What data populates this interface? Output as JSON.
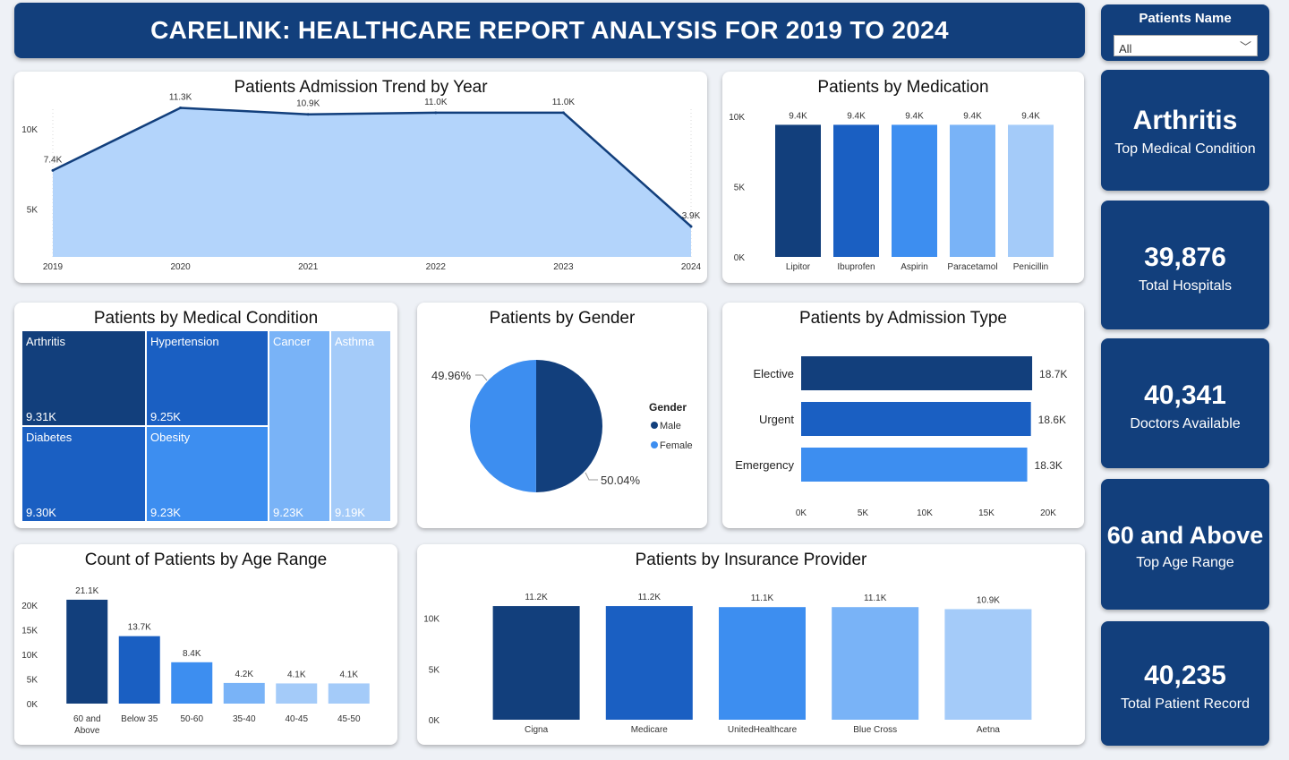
{
  "header": {
    "title": "CARELINK: HEALTHCARE REPORT ANALYSIS FOR 2019 TO 2024"
  },
  "slicer": {
    "title": "Patients Name",
    "value": "All"
  },
  "kpis": [
    {
      "value": "Arthritis",
      "label": "Top Medical Condition"
    },
    {
      "value": "39,876",
      "label": "Total Hospitals"
    },
    {
      "value": "40,341",
      "label": "Doctors Available"
    },
    {
      "value": "60 and Above",
      "label": "Top Age Range"
    },
    {
      "value": "40,235",
      "label": "Total Patient Record"
    }
  ],
  "colors": {
    "navy": "#123f7c",
    "c1": "#123f7c",
    "c2": "#1a5fc2",
    "c3": "#3d8ef0",
    "c4": "#79b3f7",
    "c5": "#a4cbf9",
    "area": "#b3d4fb"
  },
  "chart_data": [
    {
      "id": "admission_trend",
      "type": "area",
      "title": "Patients Admission Trend by Year",
      "x": [
        "2019",
        "2020",
        "2021",
        "2022",
        "2023",
        "2024"
      ],
      "values": [
        7.4,
        11.3,
        10.9,
        11.0,
        11.0,
        3.9
      ],
      "data_labels": [
        "7.4K",
        "11.3K",
        "10.9K",
        "11.0K",
        "11.0K",
        "3.9K"
      ],
      "yticks": [
        "5K",
        "10K"
      ],
      "ylim": [
        2,
        12
      ]
    },
    {
      "id": "medication",
      "type": "bar",
      "title": "Patients by Medication",
      "categories": [
        "Lipitor",
        "Ibuprofen",
        "Aspirin",
        "Paracetamol",
        "Penicillin"
      ],
      "values": [
        9.4,
        9.4,
        9.4,
        9.4,
        9.4
      ],
      "data_labels": [
        "9.4K",
        "9.4K",
        "9.4K",
        "9.4K",
        "9.4K"
      ],
      "yticks": [
        "0K",
        "5K",
        "10K"
      ],
      "ylim": [
        0,
        10
      ]
    },
    {
      "id": "medical_condition",
      "type": "heatmap",
      "title": "Patients by Medical Condition",
      "categories": [
        "Arthritis",
        "Hypertension",
        "Diabetes",
        "Obesity",
        "Cancer",
        "Asthma"
      ],
      "values": [
        9.31,
        9.25,
        9.3,
        9.23,
        9.23,
        9.19
      ],
      "data_labels": [
        "9.31K",
        "9.25K",
        "9.30K",
        "9.23K",
        "9.23K",
        "9.19K"
      ]
    },
    {
      "id": "gender",
      "type": "pie",
      "title": "Patients by Gender",
      "legend_title": "Gender",
      "categories": [
        "Male",
        "Female"
      ],
      "values": [
        50.04,
        49.96
      ],
      "data_labels": [
        "50.04%",
        "49.96%"
      ],
      "legend": "right"
    },
    {
      "id": "admission_type",
      "type": "bar",
      "orientation": "horizontal",
      "title": "Patients by Admission Type",
      "categories": [
        "Elective",
        "Urgent",
        "Emergency"
      ],
      "values": [
        18.7,
        18.6,
        18.3
      ],
      "data_labels": [
        "18.7K",
        "18.6K",
        "18.3K"
      ],
      "xticks": [
        "0K",
        "5K",
        "10K",
        "15K",
        "20K"
      ],
      "xlim": [
        0,
        20
      ]
    },
    {
      "id": "age_range",
      "type": "bar",
      "title": "Count of Patients by Age Range",
      "categories": [
        "60 and Above",
        "Below 35",
        "50-60",
        "35-40",
        "40-45",
        "45-50"
      ],
      "values": [
        21.1,
        13.7,
        8.4,
        4.2,
        4.1,
        4.1
      ],
      "data_labels": [
        "21.1K",
        "13.7K",
        "8.4K",
        "4.2K",
        "4.1K",
        "4.1K"
      ],
      "yticks": [
        "0K",
        "5K",
        "10K",
        "15K",
        "20K"
      ],
      "ylim": [
        0,
        22
      ]
    },
    {
      "id": "insurance",
      "type": "bar",
      "title": "Patients by Insurance Provider",
      "categories": [
        "Cigna",
        "Medicare",
        "UnitedHealthcare",
        "Blue Cross",
        "Aetna"
      ],
      "values": [
        11.2,
        11.2,
        11.1,
        11.1,
        10.9
      ],
      "data_labels": [
        "11.2K",
        "11.2K",
        "11.1K",
        "11.1K",
        "10.9K"
      ],
      "yticks": [
        "0K",
        "5K",
        "10K"
      ],
      "ylim": [
        0,
        12
      ]
    }
  ]
}
